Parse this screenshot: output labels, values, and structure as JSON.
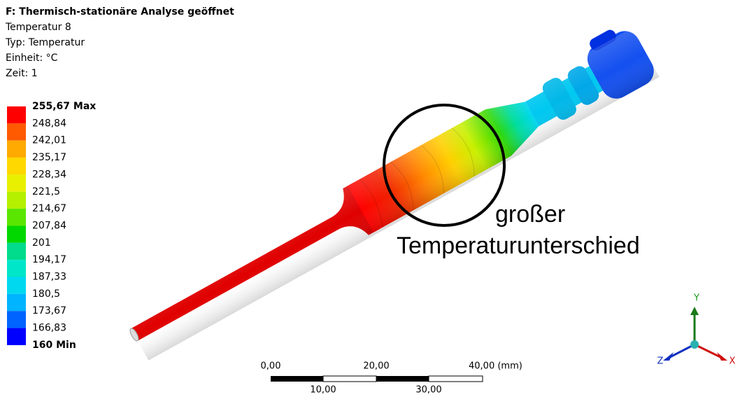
{
  "header": {
    "title": "F: Thermisch-stationäre Analyse geöffnet",
    "lines": [
      "Temperatur 8",
      "Typ: Temperatur",
      "Einheit: °C",
      "Zeit: 1"
    ]
  },
  "legend": {
    "labels": [
      "255,67 Max",
      "248,84",
      "242,01",
      "235,17",
      "228,34",
      "221,5",
      "214,67",
      "207,84",
      "201",
      "194,17",
      "187,33",
      "180,5",
      "173,67",
      "166,83",
      "160 Min"
    ],
    "colors": [
      "#ff0000",
      "#ff5a00",
      "#ffaa00",
      "#ffd800",
      "#e8f000",
      "#b4f000",
      "#5ae600",
      "#00d800",
      "#00dc8c",
      "#00e6c8",
      "#00d8f0",
      "#00b4ff",
      "#0064ff",
      "#0000ff"
    ]
  },
  "annotation": {
    "lines": [
      "großer",
      "Temperaturunterschied"
    ]
  },
  "scale_bar": {
    "top_labels": [
      "0,00",
      "20,00",
      "40,00 (mm)"
    ],
    "bottom_labels": [
      "10,00",
      "30,00"
    ]
  },
  "triad": {
    "y": "Y",
    "x": "X",
    "z": "Z"
  }
}
